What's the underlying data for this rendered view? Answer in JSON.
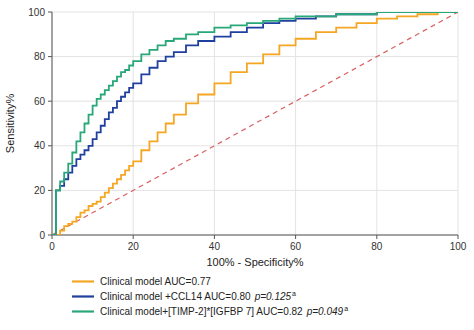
{
  "chart_data": {
    "type": "step",
    "xlabel": "100% - Specificity%",
    "ylabel": "Sensitivity%",
    "xlim": [
      0,
      100
    ],
    "ylim": [
      0,
      100
    ],
    "xticks": [
      0,
      20,
      40,
      60,
      80,
      100
    ],
    "yticks": [
      0,
      20,
      40,
      60,
      80,
      100
    ],
    "grid": true,
    "legend": "bottom",
    "reference_line": {
      "x": [
        0,
        100
      ],
      "values": [
        0,
        100
      ],
      "color": "#d96060",
      "line_style": "dashed"
    },
    "series": [
      {
        "name": "Clinical model AUC=0.77",
        "color": "#f5a623",
        "x": [
          0,
          1,
          2,
          3,
          4,
          5,
          6,
          7,
          8,
          9,
          10,
          11,
          12,
          13,
          14,
          15,
          16,
          17,
          18,
          19,
          20,
          22,
          24,
          26,
          28,
          30,
          33,
          36,
          40,
          44,
          48,
          52,
          56,
          60,
          65,
          70,
          75,
          80,
          85,
          90,
          95,
          100
        ],
        "values": [
          0,
          0,
          2,
          4,
          5,
          6,
          8,
          10,
          11,
          13,
          14,
          15,
          17,
          19,
          21,
          23,
          25,
          27,
          29,
          31,
          33,
          38,
          42,
          46,
          50,
          54,
          59,
          63,
          68,
          73,
          77,
          81,
          85,
          88,
          91,
          93,
          95,
          97,
          98,
          99,
          100,
          100
        ]
      },
      {
        "name": "Clinical model +CCL14 AUC=0.80",
        "p_value": "p=0.125",
        "footnote": "a",
        "color": "#2040a0",
        "x": [
          0,
          1,
          2,
          3,
          4,
          5,
          6,
          7,
          8,
          9,
          10,
          11,
          12,
          13,
          14,
          15,
          16,
          17,
          18,
          19,
          20,
          22,
          24,
          26,
          28,
          30,
          33,
          36,
          40,
          44,
          48,
          52,
          56,
          60,
          65,
          70,
          75,
          80,
          85,
          90,
          95,
          100
        ],
        "values": [
          0,
          20,
          22,
          25,
          28,
          31,
          34,
          36,
          38,
          40,
          43,
          46,
          49,
          52,
          55,
          57,
          60,
          62,
          64,
          66,
          68,
          72,
          75,
          78,
          80,
          82,
          85,
          87,
          89,
          91,
          93,
          95,
          96,
          97,
          98,
          99,
          99,
          100,
          100,
          100,
          100,
          100
        ]
      },
      {
        "name": "Clinical model+[TIMP-2]*[IGFBP 7] AUC=0.82",
        "p_value": "p=0.049",
        "footnote": "a",
        "color": "#28a878",
        "x": [
          0,
          1,
          2,
          3,
          4,
          5,
          6,
          7,
          8,
          9,
          10,
          11,
          12,
          13,
          14,
          15,
          16,
          17,
          18,
          19,
          20,
          22,
          24,
          26,
          28,
          30,
          33,
          36,
          40,
          44,
          48,
          52,
          56,
          60,
          65,
          70,
          75,
          80,
          85,
          90,
          95,
          100
        ],
        "values": [
          0,
          20,
          24,
          28,
          32,
          37,
          42,
          46,
          50,
          54,
          58,
          61,
          63,
          65,
          67,
          69,
          71,
          73,
          74,
          76,
          78,
          81,
          83,
          85,
          87,
          88,
          90,
          91,
          93,
          94,
          95,
          96,
          97,
          98,
          98,
          99,
          99,
          100,
          100,
          100,
          100,
          100
        ]
      }
    ]
  }
}
